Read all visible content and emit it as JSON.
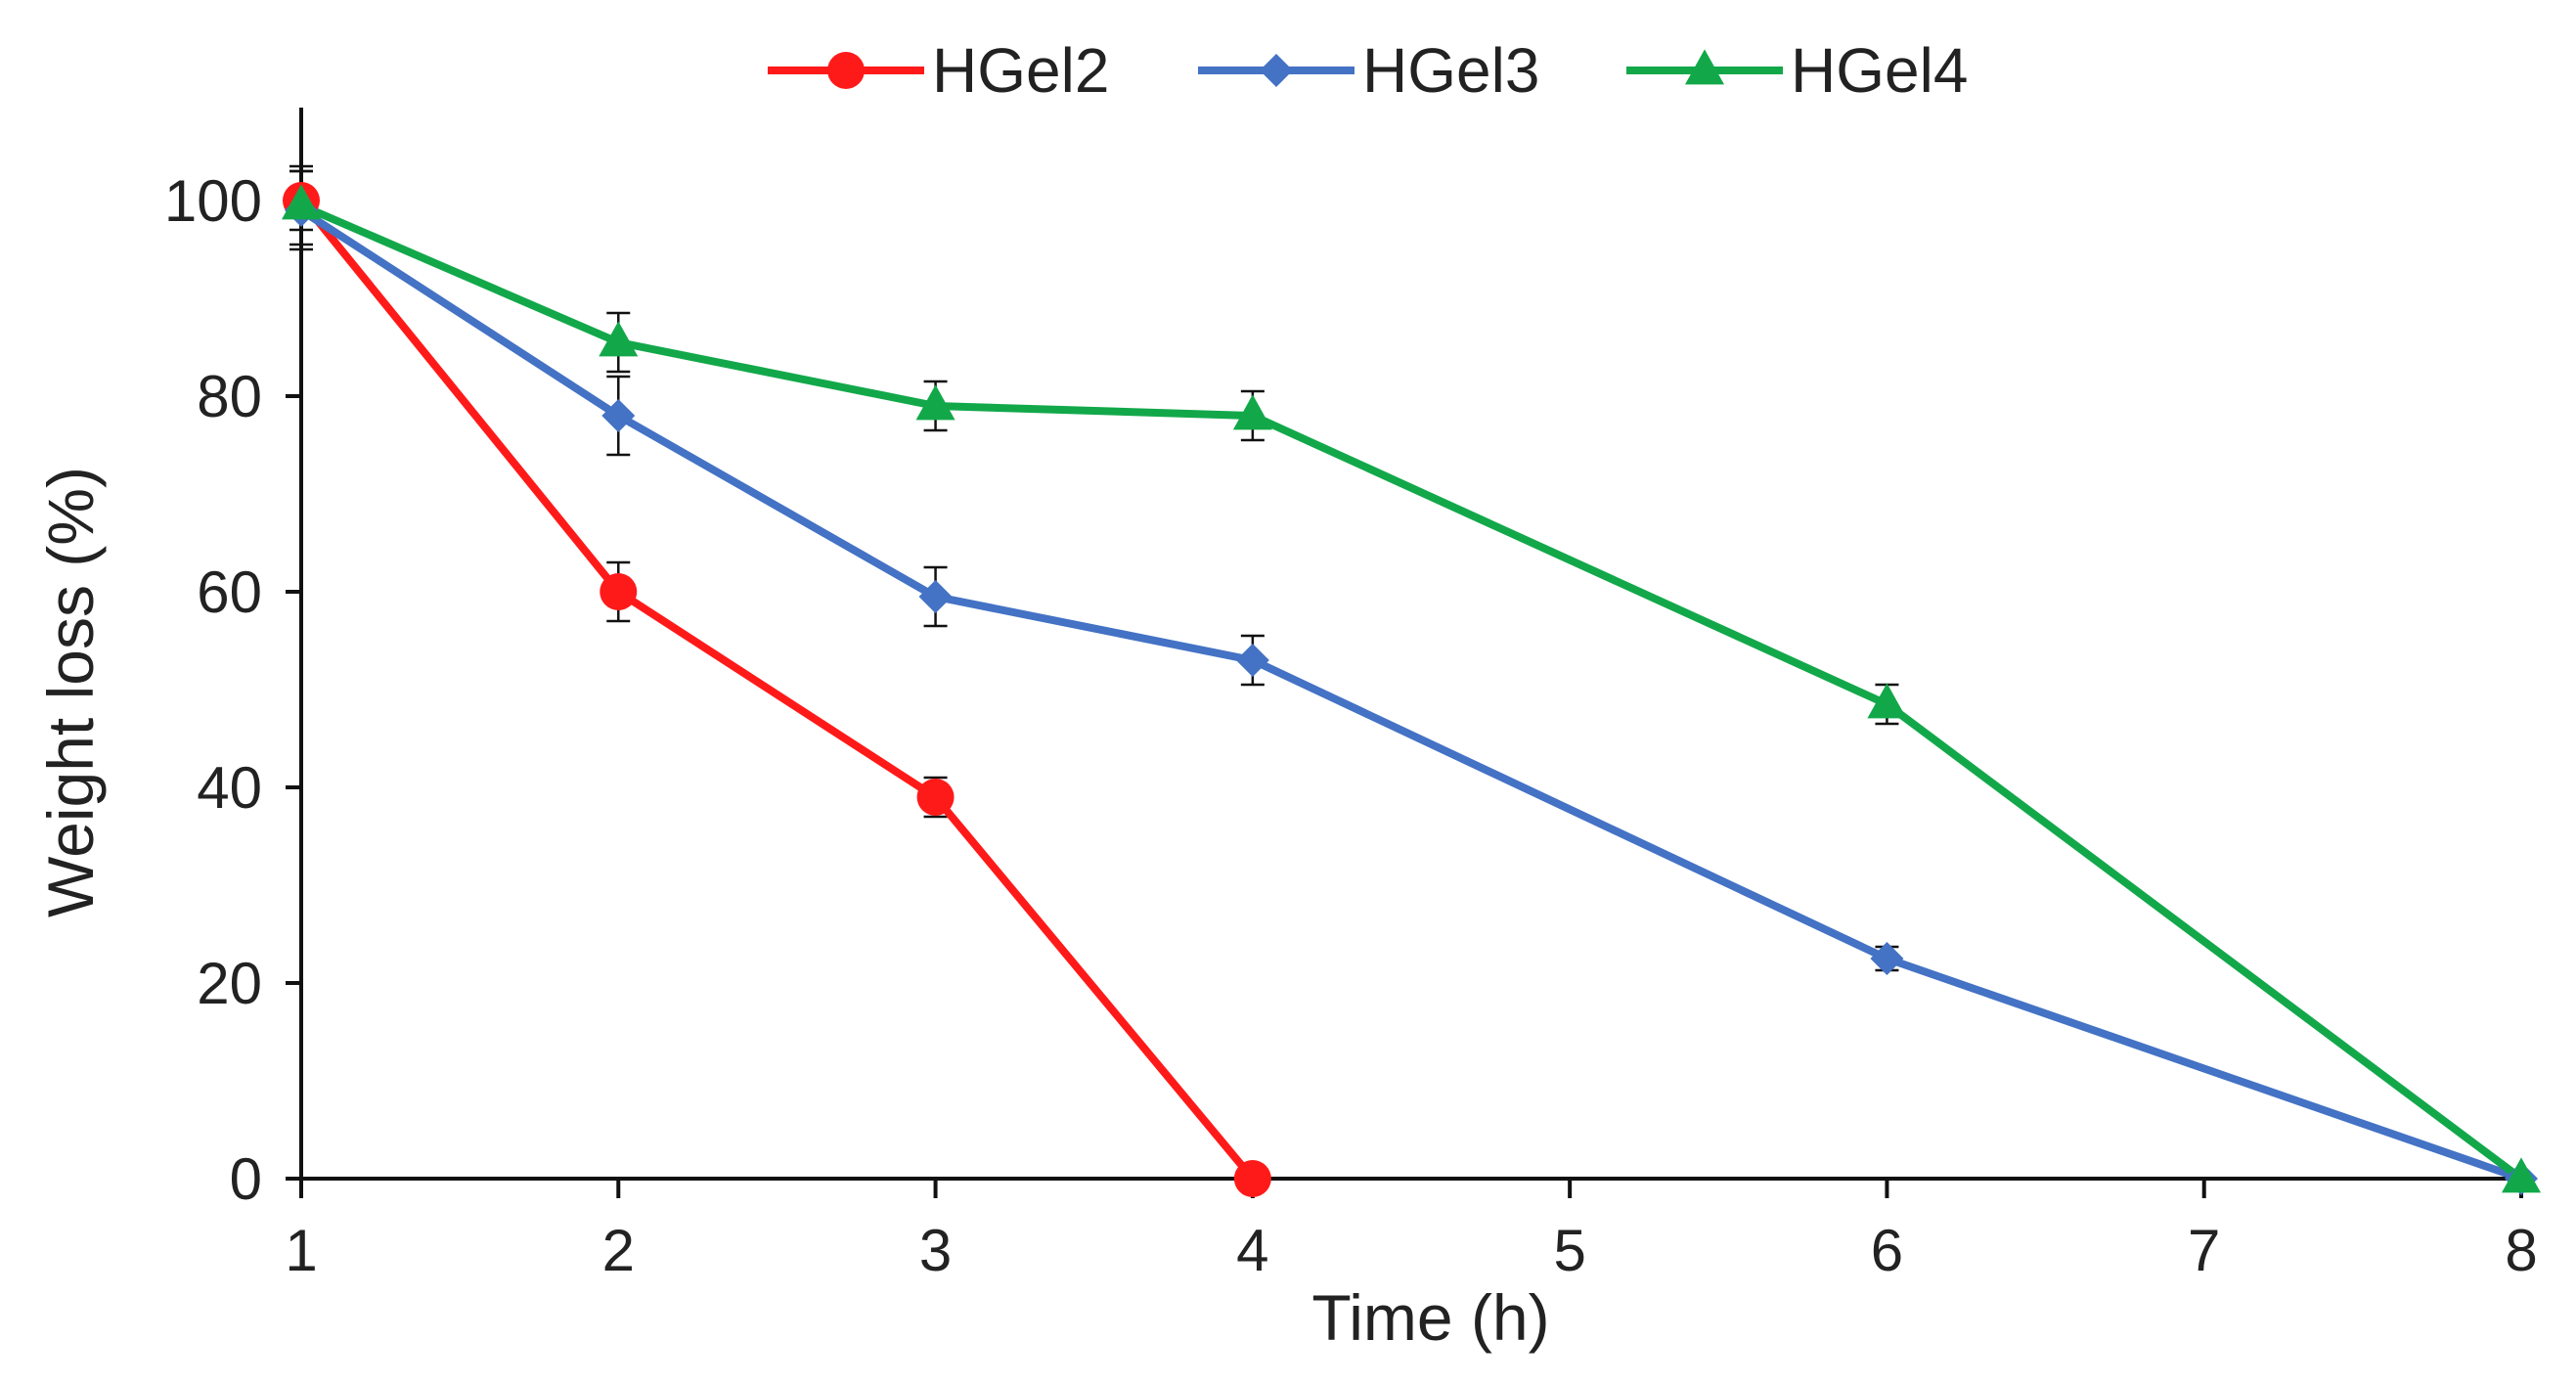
{
  "chart_data": {
    "type": "line",
    "title": "",
    "xlabel": "Time (h)",
    "ylabel": "Weight loss (%)",
    "xlim": [
      1,
      8
    ],
    "ylim": [
      0,
      110
    ],
    "xticks": [
      1,
      2,
      3,
      4,
      5,
      6,
      7,
      8
    ],
    "yticks": [
      0,
      20,
      40,
      60,
      80,
      100
    ],
    "grid": false,
    "legend_position": "top-center",
    "series": [
      {
        "name": "HGel2",
        "color": "#ff1a1a",
        "marker": "circle",
        "x": [
          1,
          2,
          3,
          4
        ],
        "y": [
          100,
          60,
          39,
          0
        ],
        "err": [
          3,
          3,
          2,
          0
        ]
      },
      {
        "name": "HGel3",
        "color": "#4472c4",
        "marker": "diamond",
        "x": [
          1,
          2,
          3,
          4,
          6,
          8
        ],
        "y": [
          99,
          78,
          59.5,
          53,
          22.5,
          0
        ],
        "err": [
          4,
          4,
          3,
          2.5,
          1.2,
          0
        ]
      },
      {
        "name": "HGel4",
        "color": "#12a84a",
        "marker": "triangle",
        "x": [
          1,
          2,
          3,
          4,
          6,
          8
        ],
        "y": [
          99.5,
          85.5,
          79,
          78,
          48.5,
          0
        ],
        "err": [
          4,
          3,
          2.5,
          2.5,
          2,
          0
        ]
      }
    ]
  }
}
